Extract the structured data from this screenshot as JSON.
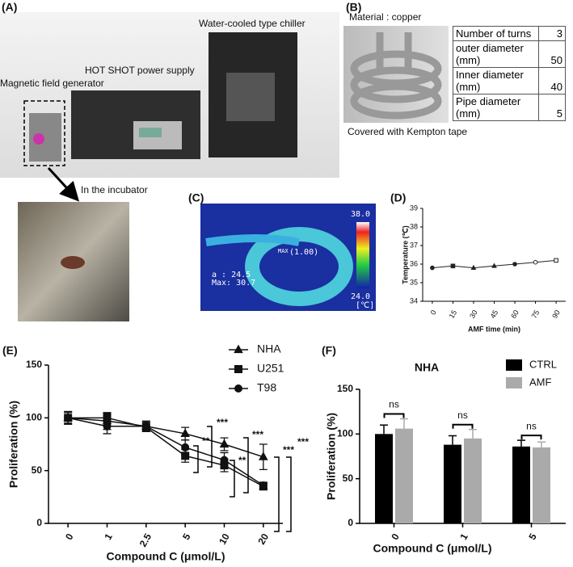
{
  "panel_labels": [
    "(A)",
    "(B)",
    "(C)",
    "(D)",
    "(E)",
    "(F)"
  ],
  "photo_a": {
    "chiller": "Water-cooled type chiller",
    "power": "HOT SHOT power supply",
    "generator": "Magnetic field generator",
    "incubator": "In the incubator"
  },
  "coil_b": {
    "material": "Material : copper",
    "covered": "Covered with Kempton tape",
    "table": {
      "rows": [
        [
          "Number of turns",
          "3"
        ],
        [
          "outer diameter (mm)",
          "50"
        ],
        [
          "Inner diameter (mm)",
          "40"
        ],
        [
          "Pipe diameter (mm)",
          "5"
        ]
      ]
    }
  },
  "thermal_c": {
    "max_scale": "38.0",
    "min_scale": "24.0",
    "unit": "[℃]",
    "spot": "a : 24.5",
    "max": "Max: 30.7",
    "emissivity": "(1.00)",
    "max_tag": "MAX"
  },
  "chart_data": [
    {
      "type": "line",
      "x_label": "AMF time (min)",
      "y_label": "Temperature (℃)",
      "x": [
        0,
        15,
        30,
        45,
        60,
        75,
        90
      ],
      "xlim": [
        -7,
        97
      ],
      "xticks": [
        0,
        15,
        30,
        45,
        60,
        75,
        90
      ],
      "ylim": [
        34,
        39
      ],
      "yticks": [
        34,
        35,
        36,
        37,
        38,
        39
      ],
      "series": [
        {
          "name": "Temperature",
          "color": "#222",
          "values": [
            35.8,
            35.9,
            35.8,
            35.9,
            36.0,
            36.1,
            36.2
          ]
        }
      ]
    },
    {
      "type": "line",
      "x_label": "Compound C (μmol/L)",
      "y_label": "Proliferation (%)",
      "categories": [
        "0",
        "1",
        "2.5",
        "5",
        "10",
        "20"
      ],
      "ylim": [
        0,
        150
      ],
      "yticks": [
        0,
        50,
        100,
        150
      ],
      "legend": "top-right",
      "series": [
        {
          "name": "NHA",
          "color": "#111",
          "marker": "triangle",
          "values": [
            100,
            97,
            92,
            85,
            75,
            63
          ],
          "errors": [
            6,
            8,
            4,
            6,
            6,
            12
          ]
        },
        {
          "name": "U251",
          "color": "#111",
          "marker": "square",
          "values": [
            100,
            100,
            91,
            64,
            55,
            35
          ],
          "errors": [
            5,
            4,
            4,
            6,
            6,
            3
          ]
        },
        {
          "name": "T98",
          "color": "#111",
          "marker": "circle",
          "values": [
            100,
            92,
            92,
            72,
            60,
            36
          ],
          "errors": [
            6,
            7,
            5,
            7,
            7,
            3
          ]
        }
      ],
      "annotations": [
        "**",
        "***",
        "**",
        "***",
        "***",
        "***"
      ]
    },
    {
      "type": "bar",
      "title": "NHA",
      "x_label": "Compound C (μmol/L)",
      "y_label": "Proliferation (%)",
      "categories": [
        "0",
        "1",
        "5"
      ],
      "ylim": [
        0,
        150
      ],
      "yticks": [
        0,
        50,
        100,
        150
      ],
      "legend": "top-right",
      "series": [
        {
          "name": "CTRL",
          "color": "#000000",
          "values": [
            100,
            88,
            86
          ],
          "errors": [
            10,
            10,
            7
          ]
        },
        {
          "name": "AMF",
          "color": "#aaaaaa",
          "values": [
            106,
            95,
            85
          ],
          "errors": [
            11,
            10,
            6
          ]
        }
      ],
      "annotations": [
        "ns",
        "ns",
        "ns"
      ]
    }
  ]
}
